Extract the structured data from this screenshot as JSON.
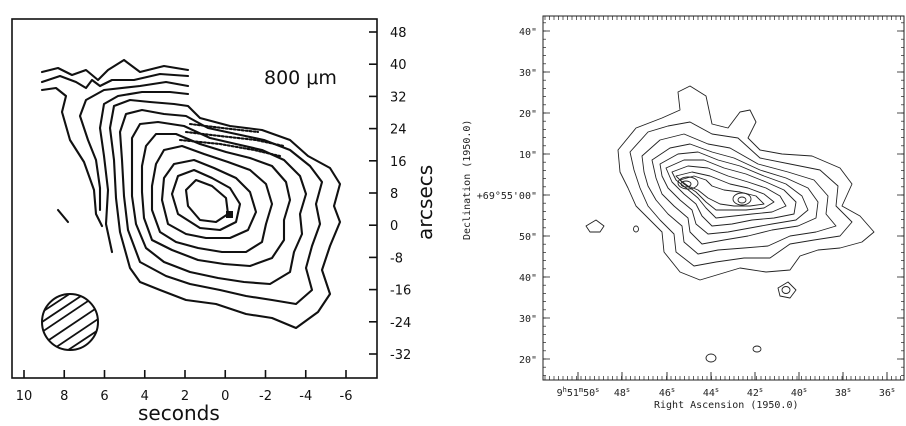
{
  "left_panel": {
    "wavelength_label": "800 μm",
    "x_axis_label": "seconds",
    "y_axis_label": "arcsecs",
    "x_ticks": [
      "10",
      "8",
      "6",
      "4",
      "2",
      "0",
      "-2",
      "-4",
      "-6"
    ],
    "y_ticks": [
      "48",
      "40",
      "32",
      "24",
      "16",
      "8",
      "0",
      "-8",
      "-16",
      "-24",
      "-32"
    ]
  },
  "right_panel": {
    "x_axis_label": "Right Ascension (1950.0)",
    "y_axis_label": "Declination (1950.0)",
    "x_ticks": [
      {
        "main": "9",
        "u1": "h",
        "v1": "51",
        "u2": "m",
        "v2": "50",
        "u3": "s"
      },
      {
        "main": "48",
        "u1": "s"
      },
      {
        "main": "46",
        "u1": "s"
      },
      {
        "main": "44",
        "u1": "s"
      },
      {
        "main": "42",
        "u1": "s"
      },
      {
        "main": "40",
        "u1": "s"
      },
      {
        "main": "38",
        "u1": "s"
      },
      {
        "main": "36",
        "u1": "s"
      }
    ],
    "y_ticks": [
      "40\"",
      "30\"",
      "20\"",
      "10\"",
      "+69°55'00\"",
      "50\"",
      "40\"",
      "30\"",
      "20\""
    ]
  }
}
